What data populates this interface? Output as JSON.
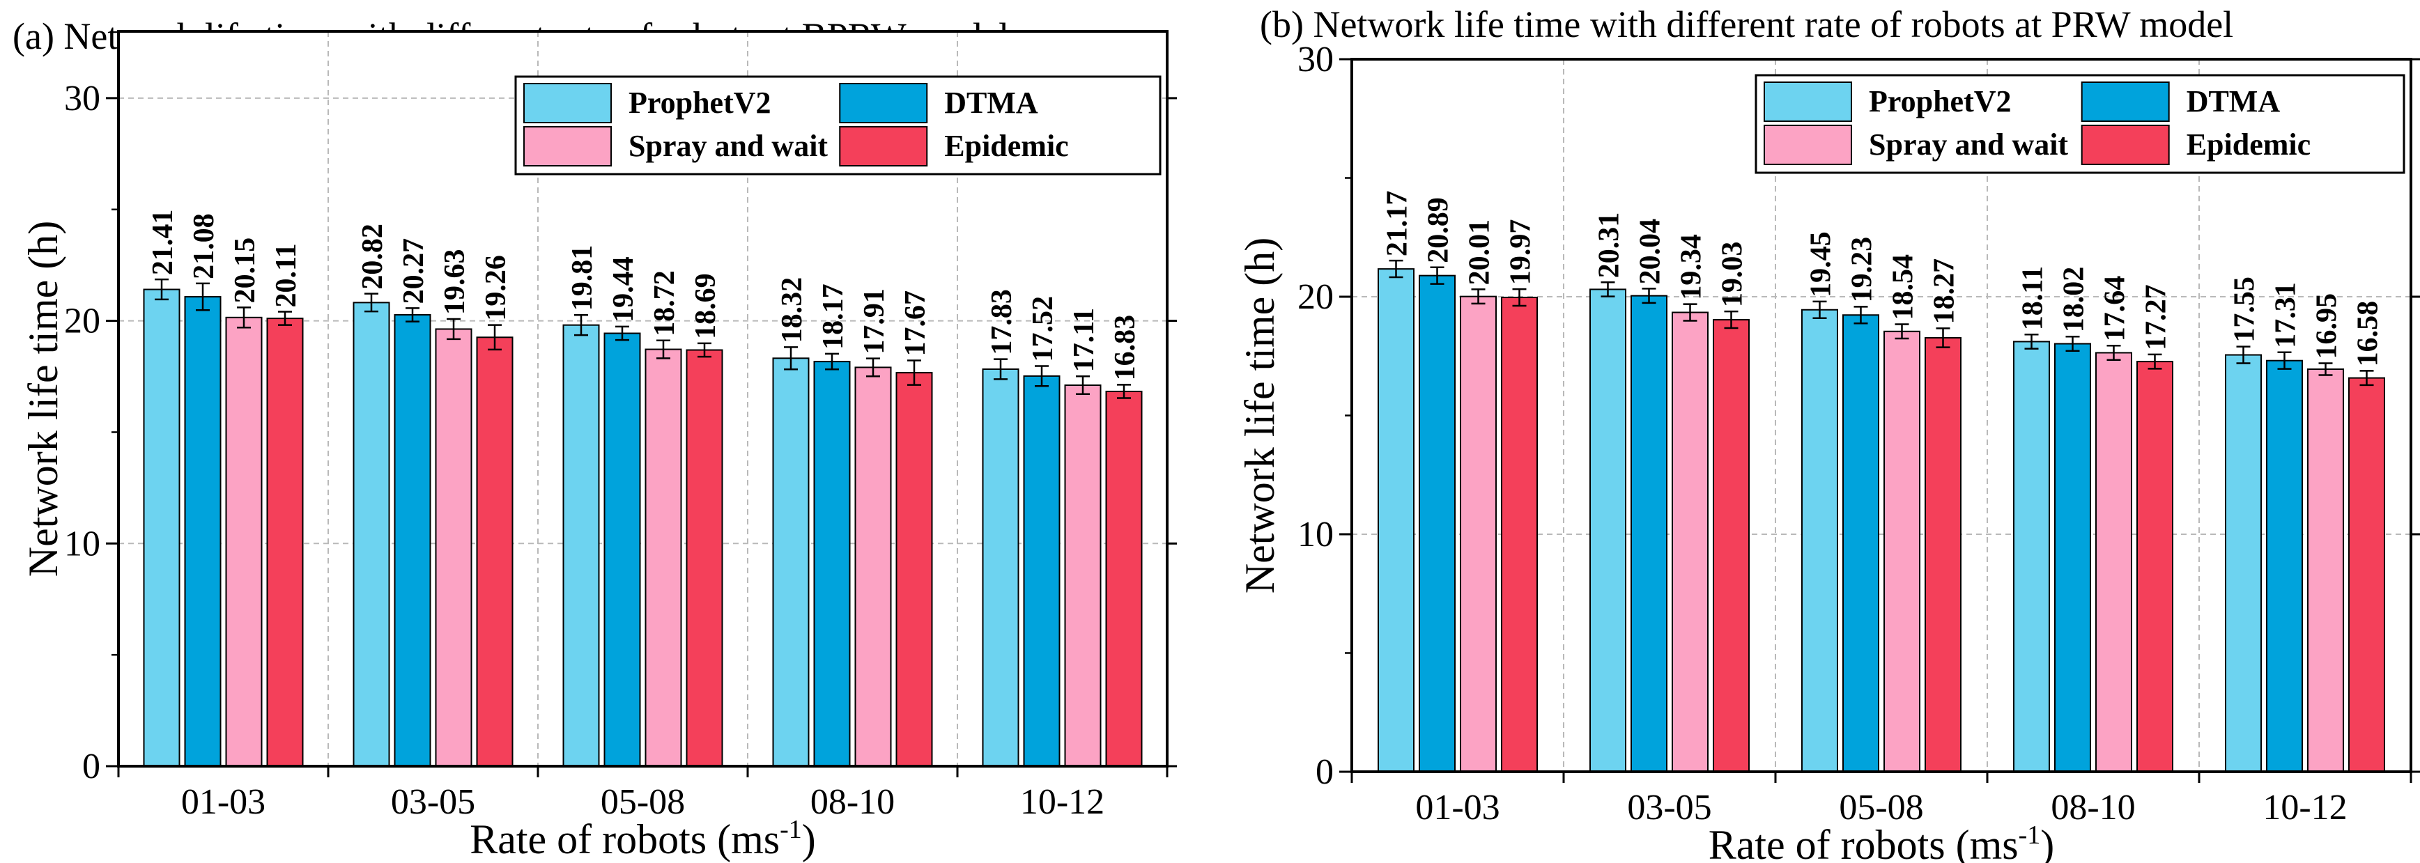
{
  "chart_data": [
    {
      "type": "bar",
      "title": "(a) Network life time with different rate of robots at BPRW model",
      "xlabel": "Rate of robots (ms",
      "xlabel_sup": "-1",
      "xlabel_suffix": ")",
      "ylabel": "Network life time (h)",
      "categories": [
        "01-03",
        "03-05",
        "05-08",
        "08-10",
        "10-12"
      ],
      "ylim": [
        0,
        33
      ],
      "yticks": [
        0,
        10,
        20,
        30
      ],
      "grid": true,
      "legend_position": "top-right",
      "series": [
        {
          "name": "ProphetV2",
          "values": [
            21.41,
            20.82,
            19.81,
            18.32,
            17.83
          ],
          "errors": [
            0.45,
            0.4,
            0.45,
            0.5,
            0.45
          ],
          "labels": [
            "21.41",
            "20.82",
            "19.81",
            "18.32",
            "17.83"
          ]
        },
        {
          "name": "DTMA",
          "values": [
            21.08,
            20.27,
            19.44,
            18.17,
            17.52
          ],
          "errors": [
            0.6,
            0.3,
            0.3,
            0.35,
            0.45
          ],
          "labels": [
            "21.08",
            "20.27",
            "19.44",
            "18.17",
            "17.52"
          ]
        },
        {
          "name": "Spray and wait",
          "values": [
            20.15,
            19.63,
            18.72,
            17.91,
            17.11
          ],
          "errors": [
            0.45,
            0.45,
            0.4,
            0.4,
            0.4
          ],
          "labels": [
            "20.15",
            "19.63",
            "18.72",
            "17.91",
            "17.11"
          ]
        },
        {
          "name": "Epidemic",
          "values": [
            20.11,
            19.26,
            18.69,
            17.67,
            16.83
          ],
          "errors": [
            0.3,
            0.55,
            0.3,
            0.55,
            0.3
          ],
          "labels": [
            "20.11",
            "19.26",
            "18.69",
            "17.67",
            "16.83"
          ]
        }
      ]
    },
    {
      "type": "bar",
      "title": "(b) Network life time with different rate of robots at PRW model",
      "xlabel": "Rate of robots (ms",
      "xlabel_sup": "-1",
      "xlabel_suffix": ")",
      "ylabel": "Network life time (h)",
      "categories": [
        "01-03",
        "03-05",
        "05-08",
        "08-10",
        "10-12"
      ],
      "ylim": [
        0,
        30
      ],
      "yticks": [
        0,
        10,
        20,
        30
      ],
      "grid": true,
      "legend_position": "top-right",
      "series": [
        {
          "name": "ProphetV2",
          "values": [
            21.17,
            20.31,
            19.45,
            18.11,
            17.55
          ],
          "errors": [
            0.35,
            0.3,
            0.35,
            0.3,
            0.35
          ],
          "labels": [
            "21.17",
            "20.31",
            "19.45",
            "18.11",
            "17.55"
          ]
        },
        {
          "name": "DTMA",
          "values": [
            20.89,
            20.04,
            19.23,
            18.02,
            17.31
          ],
          "errors": [
            0.35,
            0.3,
            0.35,
            0.3,
            0.35
          ],
          "labels": [
            "20.89",
            "20.04",
            "19.23",
            "18.02",
            "17.31"
          ]
        },
        {
          "name": "Spray and wait",
          "values": [
            20.01,
            19.34,
            18.54,
            17.64,
            16.95
          ],
          "errors": [
            0.3,
            0.35,
            0.3,
            0.3,
            0.25
          ],
          "labels": [
            "20.01",
            "19.34",
            "18.54",
            "17.64",
            "16.95"
          ]
        },
        {
          "name": "Epidemic",
          "values": [
            19.97,
            19.03,
            18.27,
            17.27,
            16.58
          ],
          "errors": [
            0.35,
            0.35,
            0.4,
            0.3,
            0.3
          ],
          "labels": [
            "19.97",
            "19.03",
            "18.27",
            "17.27",
            "16.58"
          ]
        }
      ]
    }
  ],
  "colors": {
    "ProphetV2": "#6dd3f0",
    "DTMA": "#00a3dc",
    "Spray and wait": "#fca3c4",
    "Epidemic": "#f4405a",
    "grid": "#b9b9b9",
    "axis": "#000000"
  }
}
